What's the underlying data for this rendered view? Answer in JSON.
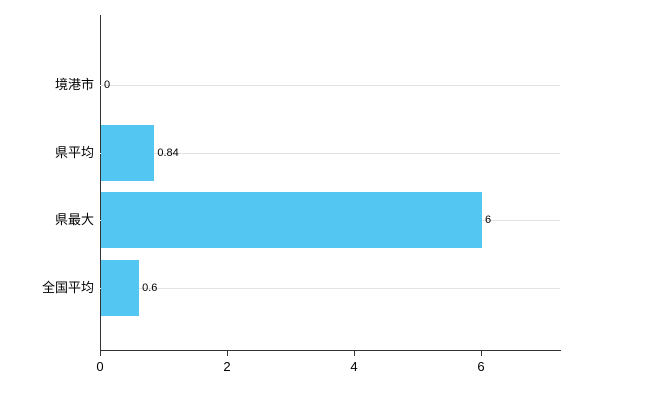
{
  "chart_data": {
    "type": "bar",
    "orientation": "horizontal",
    "title": "",
    "categories": [
      "境港市",
      "県平均",
      "県最大",
      "全国平均"
    ],
    "values": [
      0,
      0.84,
      6,
      0.6
    ],
    "value_labels": [
      "0",
      "0.84",
      "6",
      "0.6"
    ],
    "x_tick_labels": [
      "0",
      "2",
      "4",
      "6"
    ],
    "x_tick_values": [
      0,
      2,
      4,
      6
    ],
    "xlim": [
      0,
      7.25
    ],
    "grid": true,
    "legend": "none",
    "bar_color": "#53c6f2",
    "grid_color": "#e3e3e3",
    "axis_color": "#333333",
    "text_color": "#000000"
  }
}
